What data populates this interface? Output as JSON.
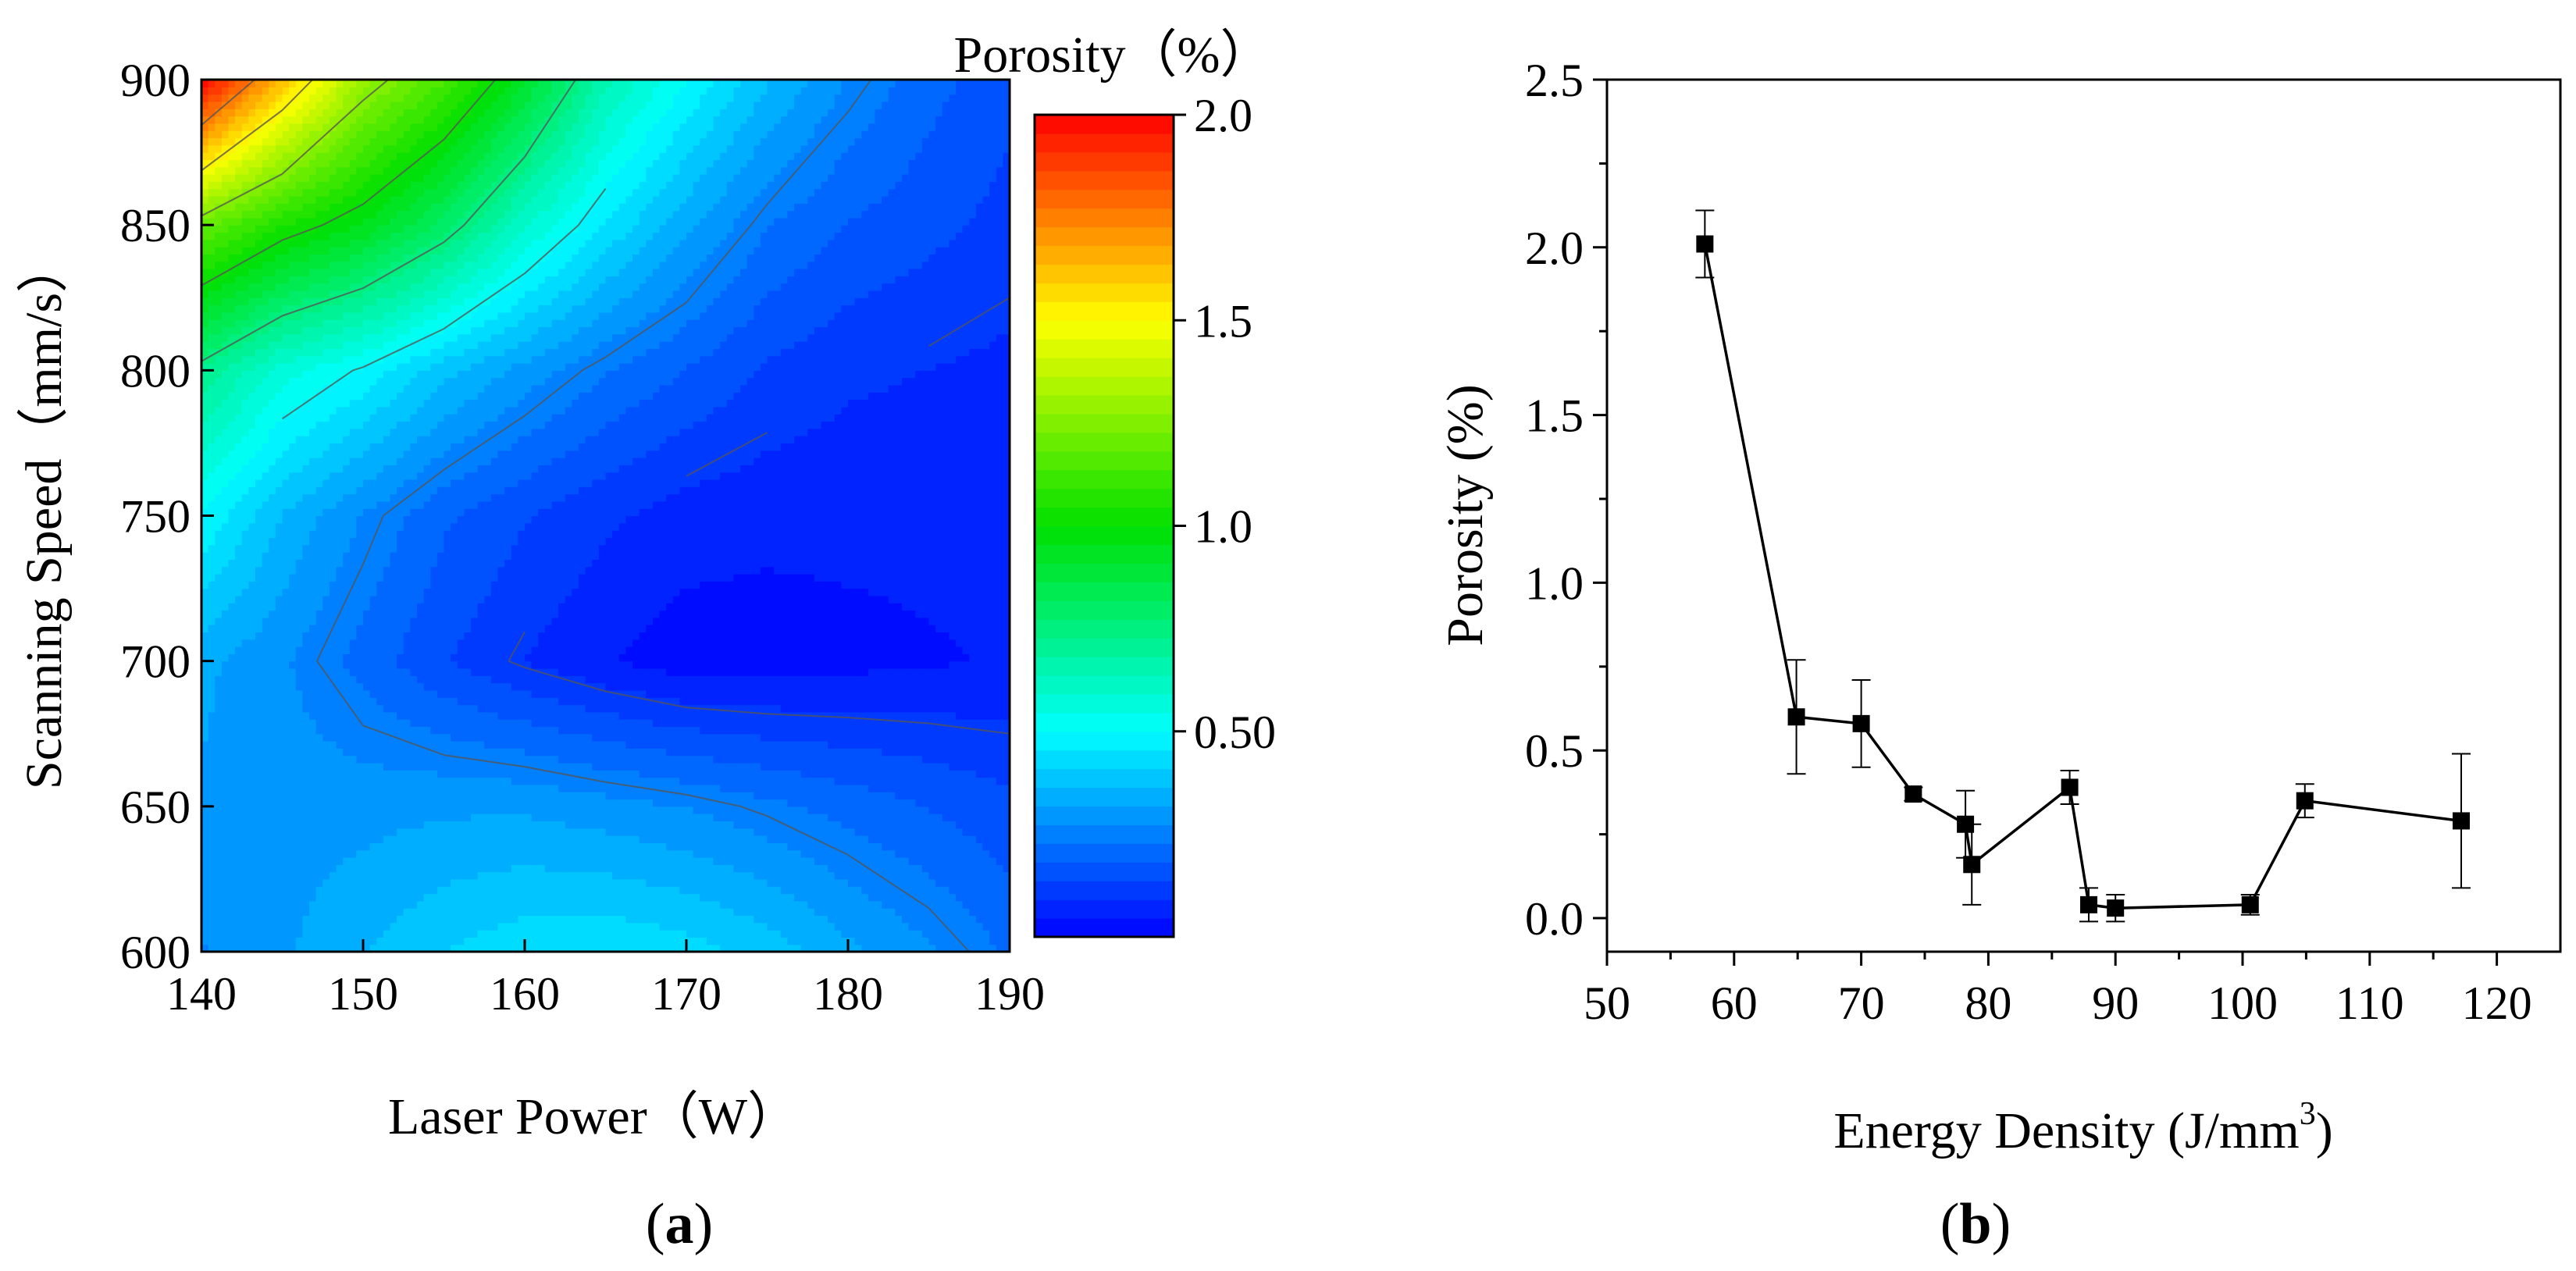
{
  "chart_data": [
    {
      "panel": "a",
      "panel_label": {
        "open": "(",
        "letter": "a",
        "close": ")"
      },
      "type": "heatmap",
      "subtype": "filled-contour",
      "xlabel": "Laser Power（W）",
      "ylabel": "Scanning Speed（mm/s）",
      "xlim": [
        140,
        190
      ],
      "ylim": [
        600,
        900
      ],
      "x_ticks": [
        140,
        150,
        160,
        170,
        180,
        190
      ],
      "y_ticks": [
        600,
        650,
        700,
        750,
        800,
        850,
        900
      ],
      "colorbar": {
        "title": "Porosity（%）",
        "range": [
          0,
          2.0
        ],
        "tick_values": [
          0.5,
          1.0,
          1.5,
          2.0
        ],
        "tick_labels": [
          "0.50",
          "1.0",
          "1.5",
          "2.0"
        ],
        "colors": {
          "low": "#0000ff",
          "mid_low": "#00ffff",
          "mid": "#00e000",
          "mid_high": "#ffff00",
          "high": "#ff0000"
        }
      },
      "grid": {
        "x": [
          140,
          145,
          150,
          155,
          160,
          165,
          170,
          175,
          180,
          185,
          190
        ],
        "y": [
          600,
          650,
          700,
          750,
          800,
          850,
          900
        ],
        "z": [
          [
            0.27,
            0.31,
            0.36,
            0.41,
            0.44,
            0.45,
            0.43,
            0.39,
            0.33,
            0.28,
            0.22
          ],
          [
            0.31,
            0.3,
            0.3,
            0.31,
            0.31,
            0.29,
            0.27,
            0.24,
            0.21,
            0.18,
            0.15
          ],
          [
            0.33,
            0.28,
            0.21,
            0.14,
            0.09,
            0.05,
            0.02,
            0.02,
            0.03,
            0.04,
            0.05
          ],
          [
            0.5,
            0.36,
            0.27,
            0.19,
            0.14,
            0.1,
            0.07,
            0.06,
            0.06,
            0.06,
            0.06
          ],
          [
            0.72,
            0.57,
            0.49,
            0.38,
            0.3,
            0.23,
            0.18,
            0.13,
            0.1,
            0.09,
            0.08
          ],
          [
            1.2,
            1.05,
            0.95,
            0.8,
            0.6,
            0.45,
            0.33,
            0.23,
            0.18,
            0.15,
            0.12
          ],
          [
            2.0,
            1.62,
            1.3,
            1.14,
            0.92,
            0.65,
            0.5,
            0.37,
            0.27,
            0.2,
            0.15
          ]
        ]
      }
    },
    {
      "panel": "b",
      "panel_label": {
        "open": "(",
        "letter": "b",
        "close": ")"
      },
      "type": "line",
      "markers": "square",
      "xlabel": "Energy Density (J/mm",
      "xlabel_superscript": "3",
      "xlabel_suffix": ")",
      "ylabel": "Porosity (%)",
      "xlim": [
        50,
        125
      ],
      "ylim": [
        -0.1,
        2.5
      ],
      "x_ticks": [
        50,
        60,
        70,
        80,
        90,
        100,
        110,
        120
      ],
      "y_ticks": [
        0.0,
        0.5,
        1.0,
        1.5,
        2.0,
        2.5
      ],
      "y_tick_labels": [
        "0.0",
        "0.5",
        "1.0",
        "1.5",
        "2.0",
        "2.5"
      ],
      "grid": false,
      "series": [
        {
          "name": "Porosity",
          "color": "#000000",
          "x": [
            57.7,
            64.9,
            70.0,
            74.1,
            78.2,
            78.7,
            86.4,
            87.9,
            90.0,
            100.6,
            104.9,
            117.2
          ],
          "y": [
            2.01,
            0.6,
            0.58,
            0.37,
            0.28,
            0.16,
            0.39,
            0.04,
            0.03,
            0.04,
            0.35,
            0.29
          ],
          "error": [
            0.1,
            0.17,
            0.13,
            0.02,
            0.1,
            0.12,
            0.05,
            0.05,
            0.04,
            0.03,
            0.05,
            0.2
          ]
        }
      ]
    }
  ]
}
